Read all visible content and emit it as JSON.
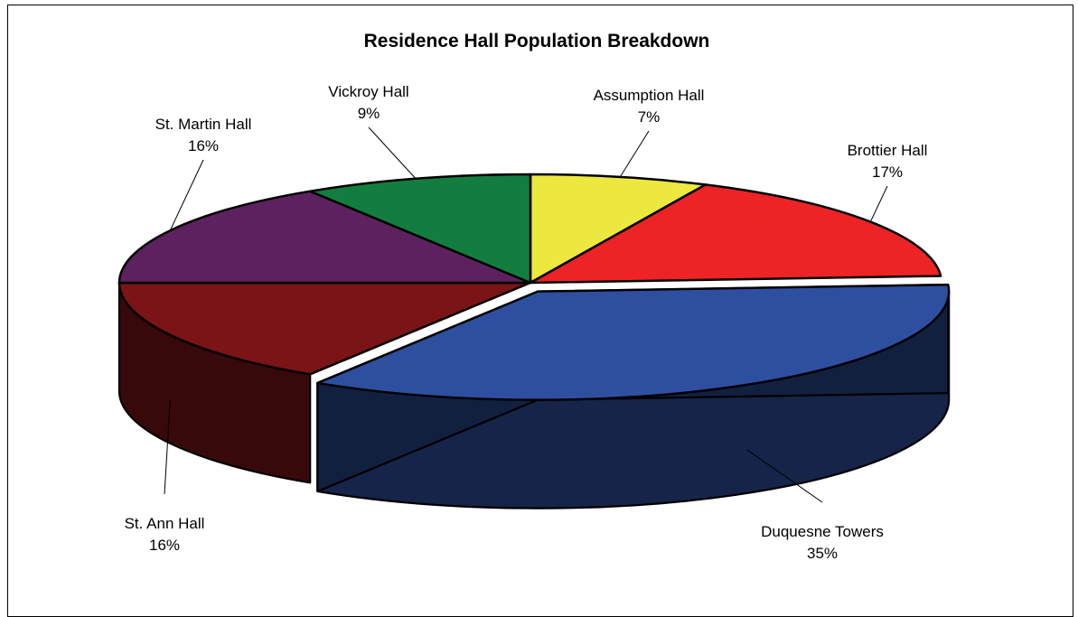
{
  "chart_data": {
    "type": "pie",
    "title": "Residence Hall Population Breakdown",
    "style": "3d-exploded",
    "slices": [
      {
        "label": "Assumption Hall",
        "value": 7,
        "percent_text": "7%",
        "color": "#EDE83F"
      },
      {
        "label": "Brottier Hall",
        "value": 17,
        "percent_text": "17%",
        "color": "#EE2326"
      },
      {
        "label": "Duquesne Towers",
        "value": 35,
        "percent_text": "35%",
        "color": "#2E4FA0"
      },
      {
        "label": "St. Ann Hall",
        "value": 16,
        "percent_text": "16%",
        "color": "#7A1416"
      },
      {
        "label": "St. Martin Hall",
        "value": 16,
        "percent_text": "16%",
        "color": "#5E2160"
      },
      {
        "label": "Vickroy Hall",
        "value": 9,
        "percent_text": "9%",
        "color": "#137D40"
      }
    ]
  }
}
